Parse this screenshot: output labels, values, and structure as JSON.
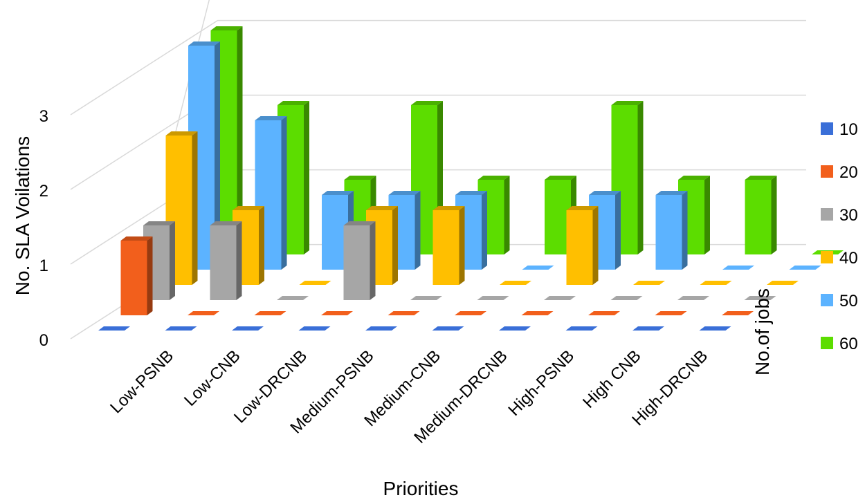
{
  "chart_data": {
    "type": "bar",
    "subtype": "3d-column",
    "title": "",
    "xlabel": "Priorities",
    "ylabel": "No. SLA Voilations",
    "zlabel": "No.of jobs",
    "ylim": [
      0,
      3
    ],
    "yticks": [
      "0",
      "1",
      "2",
      "3"
    ],
    "grid": true,
    "legend_position": "right",
    "categories": [
      "Low-PSNB",
      "Low-CNB",
      "Low-DRCNB",
      "Medium-PSNB",
      "Medium-CNB",
      "Medium-DRCNB",
      "High-PSNB",
      "High CNB",
      "High-DRCNB",
      ""
    ],
    "series": [
      {
        "name": "10",
        "color": "#3a6fd8",
        "values": [
          0,
          0,
          0,
          0,
          0,
          0,
          0,
          0,
          0,
          0
        ]
      },
      {
        "name": "20",
        "color": "#f25f1c",
        "values": [
          1,
          0,
          0,
          0,
          0,
          0,
          0,
          0,
          0,
          0
        ]
      },
      {
        "name": "30",
        "color": "#a6a6a6",
        "values": [
          1,
          1,
          0,
          1,
          0,
          0,
          0,
          0,
          0,
          0
        ]
      },
      {
        "name": "40",
        "color": "#ffbf00",
        "values": [
          2,
          1,
          0,
          1,
          1,
          0,
          1,
          0,
          0,
          0
        ]
      },
      {
        "name": "50",
        "color": "#5cb3ff",
        "values": [
          3,
          2,
          1,
          1,
          1,
          0,
          1,
          1,
          0,
          0
        ]
      },
      {
        "name": "60",
        "color": "#5cdd00",
        "values": [
          3,
          2,
          1,
          2,
          1,
          1,
          2,
          1,
          1,
          0
        ]
      }
    ]
  }
}
